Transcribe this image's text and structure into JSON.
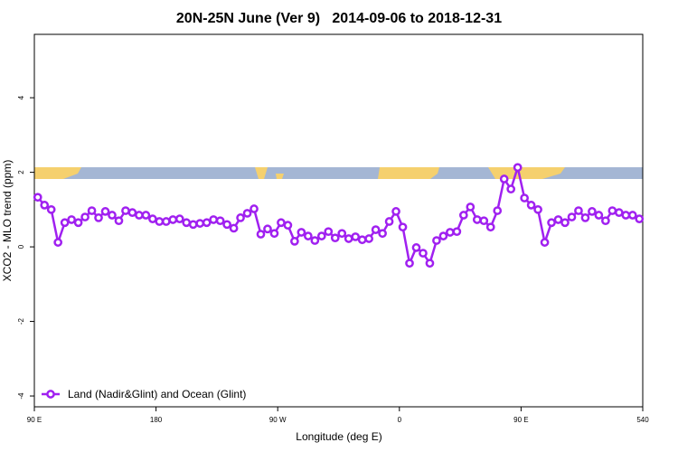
{
  "chart_data": {
    "type": "line",
    "title": "20N-25N June (Ver 9)   2014-09-06 to 2018-12-31",
    "x_label": "Longitude (deg E)",
    "y_label": "XCO2 - MLO trend (ppm)",
    "xlim": [
      90,
      540
    ],
    "ylim": [
      -4.29,
      5.7
    ],
    "xticks": [
      {
        "value": 90,
        "label": "90 E"
      },
      180,
      {
        "value": 270,
        "label": "90 W"
      },
      {
        "value": 360,
        "label": "0"
      },
      {
        "value": 450,
        "label": "90 E"
      },
      540
    ],
    "yticks": [
      -4,
      -2,
      0,
      2,
      4
    ],
    "legend": "bottom-left",
    "x": [
      92.5,
      97.5,
      102.5,
      107.5,
      112.5,
      117.5,
      122.5,
      127.5,
      132.5,
      137.5,
      142.5,
      147.5,
      152.5,
      157.5,
      162.5,
      167.5,
      172.5,
      177.5,
      182.5,
      187.5,
      192.5,
      197.5,
      202.5,
      207.5,
      212.5,
      217.5,
      222.5,
      227.5,
      232.5,
      237.5,
      242.5,
      247.5,
      252.5,
      257.5,
      262.5,
      267.5,
      272.5,
      277.5,
      282.5,
      287.5,
      292.5,
      297.5,
      302.5,
      307.5,
      312.5,
      317.5,
      322.5,
      327.5,
      332.5,
      337.5,
      342.5,
      347.5,
      352.5,
      357.5,
      362.5,
      367.5,
      372.5,
      377.5,
      382.5,
      387.5,
      392.5,
      397.5,
      402.5,
      407.5,
      412.5,
      417.5,
      422.5,
      427.5,
      432.5,
      437.5,
      442.5,
      447.5,
      452.5,
      457.5,
      462.5,
      467.5,
      472.5,
      477.5,
      482.5,
      487.5,
      492.5,
      497.5,
      502.5,
      507.5,
      512.5,
      517.5,
      522.5,
      527.5,
      532.5,
      537.5
    ],
    "series": [
      {
        "name": "Land (Nadir&Glint) and Ocean (Glint)",
        "color": "#a020f0",
        "values": [
          1.33,
          1.12,
          1.0,
          0.12,
          0.65,
          0.73,
          0.65,
          0.8,
          0.97,
          0.78,
          0.95,
          0.85,
          0.7,
          0.97,
          0.92,
          0.85,
          0.85,
          0.75,
          0.68,
          0.68,
          0.73,
          0.75,
          0.65,
          0.6,
          0.63,
          0.65,
          0.73,
          0.7,
          0.6,
          0.5,
          0.78,
          0.9,
          1.02,
          0.34,
          0.48,
          0.36,
          0.65,
          0.58,
          0.15,
          0.39,
          0.29,
          0.17,
          0.29,
          0.41,
          0.24,
          0.36,
          0.22,
          0.27,
          0.19,
          0.22,
          0.46,
          0.36,
          0.68,
          0.95,
          0.53,
          -0.44,
          -0.02,
          -0.17,
          -0.44,
          0.17,
          0.29,
          0.39,
          0.41,
          0.85,
          1.07,
          0.73,
          0.7,
          0.53,
          0.97,
          1.82,
          1.55,
          2.13,
          1.31,
          1.12,
          1.0,
          0.12,
          0.65,
          0.73,
          0.65,
          0.8,
          0.97,
          0.78,
          0.95,
          0.85,
          0.7,
          0.97,
          0.92,
          0.85,
          0.85,
          0.75
        ]
      }
    ]
  }
}
